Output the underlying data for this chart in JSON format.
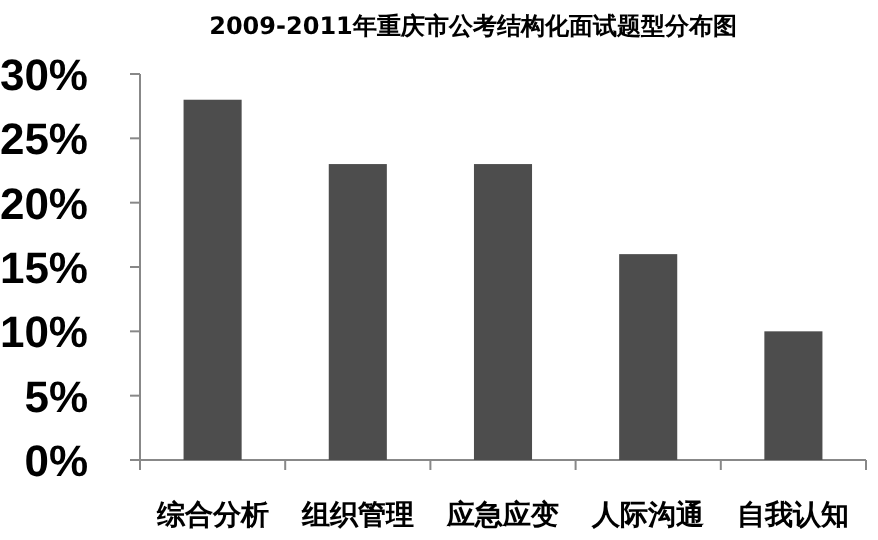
{
  "chart_data": {
    "type": "bar",
    "title": "2009-2011年重庆市公考结构化面试题型分布图",
    "categories": [
      "综合分析",
      "组织管理",
      "应急应变",
      "人际沟通",
      "自我认知"
    ],
    "values": [
      28,
      23,
      23,
      16,
      10
    ],
    "color": "#4d4d4d",
    "ylim": [
      0,
      30
    ],
    "yticks": [
      {
        "value": 0,
        "label": "0%"
      },
      {
        "value": 5,
        "label": "5%"
      },
      {
        "value": 10,
        "label": "10%"
      },
      {
        "value": 15,
        "label": "15%"
      },
      {
        "value": 20,
        "label": "20%"
      },
      {
        "value": 25,
        "label": "25%"
      },
      {
        "value": 30,
        "label": "30%"
      }
    ],
    "grid": false
  }
}
